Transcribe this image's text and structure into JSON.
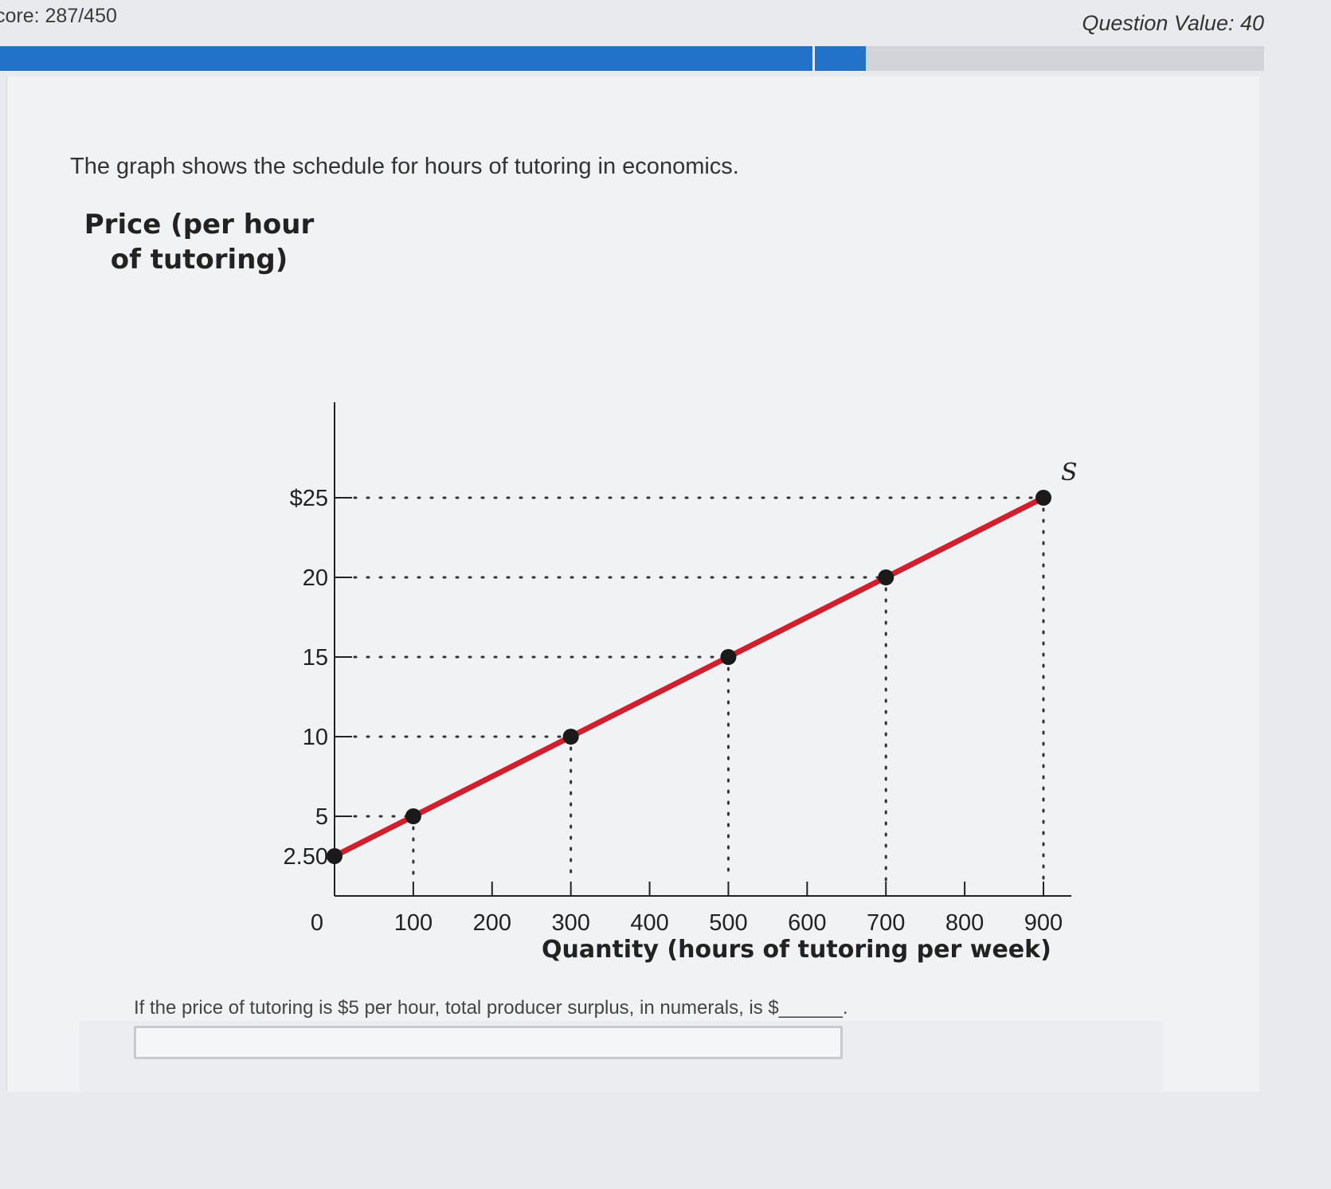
{
  "header": {
    "score": "core: 287/450",
    "question_value": "Question Value: 40",
    "progress_fraction": 0.685
  },
  "question": {
    "intro": "The graph shows the schedule for hours of tutoring in economics.",
    "prompt": "If the price of tutoring is $5 per hour, total producer surplus, in numerals, is $______.",
    "answer_value": ""
  },
  "chart_data": {
    "type": "line",
    "title": "",
    "ylabel_line1": "Price (per hour",
    "ylabel_line2": "of tutoring)",
    "xlabel": "Quantity (hours of tutoring per week)",
    "x_ticks": [
      "0",
      "100",
      "200",
      "300",
      "400",
      "500",
      "600",
      "700",
      "800",
      "900"
    ],
    "y_ticks": [
      "2.50",
      "5",
      "10",
      "15",
      "20",
      "$25"
    ],
    "xlim": [
      0,
      900
    ],
    "ylim": [
      0,
      25
    ],
    "series": [
      {
        "name": "S",
        "color": "#d0202e",
        "x": [
          0,
          100,
          300,
          500,
          700,
          900
        ],
        "y": [
          2.5,
          5,
          10,
          15,
          20,
          25
        ]
      }
    ],
    "grid": false,
    "guide_lines": "dotted"
  }
}
